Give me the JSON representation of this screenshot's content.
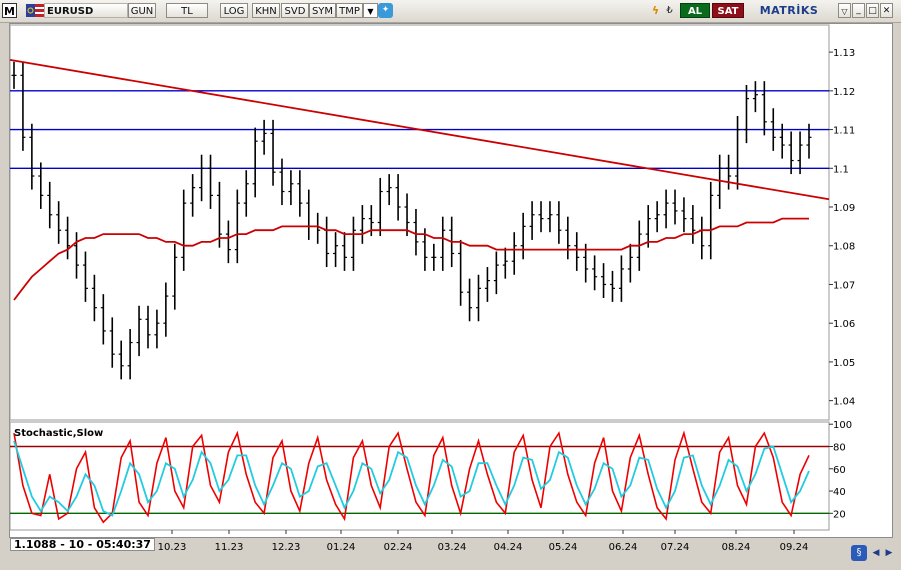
{
  "toolbar": {
    "app_icon": "M",
    "symbol": "EURUSD",
    "period": "GUN",
    "currency": "TL",
    "scale": "LOG",
    "buttons": [
      "KHN",
      "SVD",
      "SYM",
      "TMP"
    ],
    "buy_label": "AL",
    "sell_label": "SAT",
    "brand": "MATRİKS"
  },
  "indicator": {
    "name": "Stochastic,Slow",
    "levels": [
      20,
      80
    ]
  },
  "readout": {
    "text": "1.1088 - 10 - 05:40:37"
  },
  "colors": {
    "candles": "#000000",
    "trendline": "#cc0000",
    "ma": "#cc0000",
    "hlines": "#0000cc",
    "stoch_k": "#ee0000",
    "stoch_d": "#22cce0",
    "level80": "#990000",
    "level20": "#006600"
  },
  "chart_data": {
    "type": "line",
    "title": "EURUSD",
    "price_axis": {
      "ticks": [
        1.04,
        1.05,
        1.06,
        1.07,
        1.08,
        1.09,
        1.1,
        1.11,
        1.12,
        1.13
      ],
      "ylim": [
        1.035,
        1.137
      ]
    },
    "x_tick_labels": [
      "10.23",
      "11.23",
      "12.23",
      "01.24",
      "02.24",
      "03.24",
      "04.24",
      "05.24",
      "06.24",
      "07.24",
      "08.24",
      "09.24"
    ],
    "horizontal_lines": [
      1.12,
      1.11,
      1.1
    ],
    "trendline": {
      "start": 1.128,
      "end": 1.092
    },
    "price_series": [
      1.124,
      1.108,
      1.098,
      1.093,
      1.088,
      1.084,
      1.08,
      1.075,
      1.069,
      1.064,
      1.058,
      1.052,
      1.049,
      1.055,
      1.061,
      1.057,
      1.06,
      1.067,
      1.077,
      1.091,
      1.095,
      1.1,
      1.093,
      1.083,
      1.079,
      1.091,
      1.096,
      1.107,
      1.109,
      1.099,
      1.094,
      1.096,
      1.091,
      1.085,
      1.084,
      1.078,
      1.08,
      1.077,
      1.084,
      1.087,
      1.086,
      1.094,
      1.095,
      1.09,
      1.086,
      1.081,
      1.077,
      1.077,
      1.084,
      1.078,
      1.068,
      1.064,
      1.069,
      1.071,
      1.075,
      1.076,
      1.08,
      1.085,
      1.088,
      1.087,
      1.088,
      1.084,
      1.08,
      1.077,
      1.074,
      1.072,
      1.07,
      1.069,
      1.074,
      1.077,
      1.083,
      1.087,
      1.088,
      1.091,
      1.089,
      1.087,
      1.084,
      1.08,
      1.093,
      1.1,
      1.098,
      1.11,
      1.118,
      1.119,
      1.112,
      1.108,
      1.106,
      1.102,
      1.106,
      1.108
    ],
    "ma_series": [
      1.066,
      1.069,
      1.072,
      1.074,
      1.076,
      1.078,
      1.079,
      1.081,
      1.082,
      1.082,
      1.083,
      1.083,
      1.083,
      1.083,
      1.083,
      1.082,
      1.082,
      1.081,
      1.081,
      1.08,
      1.08,
      1.081,
      1.081,
      1.082,
      1.082,
      1.083,
      1.083,
      1.084,
      1.084,
      1.084,
      1.085,
      1.085,
      1.085,
      1.085,
      1.085,
      1.084,
      1.084,
      1.083,
      1.083,
      1.083,
      1.084,
      1.084,
      1.084,
      1.084,
      1.084,
      1.083,
      1.083,
      1.082,
      1.082,
      1.081,
      1.081,
      1.08,
      1.08,
      1.08,
      1.079,
      1.079,
      1.079,
      1.079,
      1.079,
      1.079,
      1.079,
      1.079,
      1.079,
      1.079,
      1.079,
      1.079,
      1.079,
      1.079,
      1.079,
      1.08,
      1.08,
      1.081,
      1.081,
      1.082,
      1.082,
      1.083,
      1.083,
      1.084,
      1.084,
      1.085,
      1.085,
      1.085,
      1.086,
      1.086,
      1.086,
      1.086,
      1.087,
      1.087,
      1.087,
      1.087
    ],
    "stoch_axis": {
      "ticks": [
        20,
        40,
        60,
        80,
        100
      ],
      "ylim": [
        5,
        102
      ]
    },
    "stoch_k": [
      92,
      45,
      20,
      18,
      55,
      15,
      20,
      60,
      75,
      25,
      12,
      20,
      70,
      85,
      30,
      18,
      65,
      88,
      40,
      25,
      80,
      90,
      45,
      30,
      75,
      92,
      55,
      30,
      20,
      70,
      85,
      40,
      22,
      65,
      88,
      50,
      28,
      15,
      70,
      85,
      45,
      25,
      80,
      92,
      60,
      30,
      18,
      72,
      88,
      45,
      20,
      60,
      85,
      55,
      30,
      20,
      75,
      90,
      50,
      25,
      80,
      92,
      55,
      30,
      18,
      65,
      88,
      40,
      22,
      70,
      90,
      55,
      25,
      15,
      68,
      92,
      60,
      30,
      20,
      75,
      88,
      45,
      28,
      80,
      92,
      70,
      30,
      18,
      55,
      72
    ],
    "stoch_d": [
      85,
      60,
      35,
      22,
      35,
      30,
      22,
      35,
      55,
      45,
      22,
      18,
      40,
      65,
      55,
      30,
      40,
      65,
      60,
      35,
      50,
      75,
      65,
      40,
      50,
      72,
      72,
      45,
      28,
      45,
      65,
      60,
      35,
      40,
      62,
      65,
      45,
      25,
      40,
      65,
      60,
      38,
      50,
      75,
      70,
      45,
      28,
      45,
      68,
      62,
      35,
      40,
      65,
      65,
      45,
      28,
      45,
      70,
      68,
      42,
      50,
      75,
      70,
      45,
      28,
      42,
      65,
      60,
      35,
      45,
      70,
      68,
      42,
      25,
      40,
      70,
      72,
      45,
      28,
      45,
      68,
      62,
      40,
      55,
      78,
      80,
      55,
      30,
      40,
      58
    ]
  }
}
